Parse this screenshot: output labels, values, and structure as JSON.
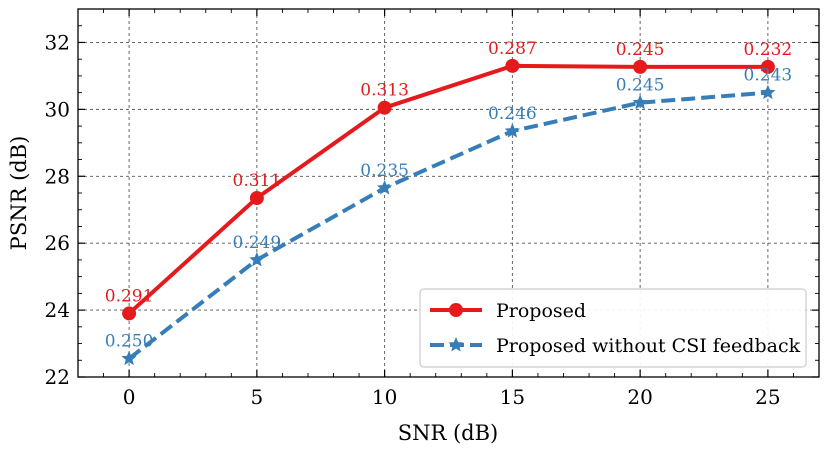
{
  "chart_data": {
    "type": "line",
    "title": "",
    "xlabel": "SNR (dB)",
    "ylabel": "PSNR (dB)",
    "x": [
      0,
      5,
      10,
      15,
      20,
      25
    ],
    "xticks": [
      0,
      5,
      10,
      15,
      20,
      25
    ],
    "yticks": [
      22,
      24,
      26,
      28,
      30,
      32
    ],
    "xlim": [
      -2,
      27
    ],
    "ylim": [
      22,
      33
    ],
    "grid": true,
    "legend_position": "bottom-right",
    "series": [
      {
        "name": "Proposed",
        "color": "#e41a1c",
        "marker": "circle",
        "linestyle": "solid",
        "values": [
          23.9,
          27.35,
          30.05,
          31.3,
          31.27,
          31.27
        ],
        "annotations": [
          "0.291",
          "0.311",
          "0.313",
          "0.287",
          "0.245",
          "0.232"
        ]
      },
      {
        "name": "Proposed without CSI feedback",
        "color": "#377eb8",
        "marker": "star",
        "linestyle": "dashed",
        "values": [
          22.55,
          25.5,
          27.65,
          29.35,
          30.2,
          30.5
        ],
        "annotations": [
          "0.250",
          "0.249",
          "0.235",
          "0.246",
          "0.245",
          "0.243"
        ]
      }
    ]
  }
}
